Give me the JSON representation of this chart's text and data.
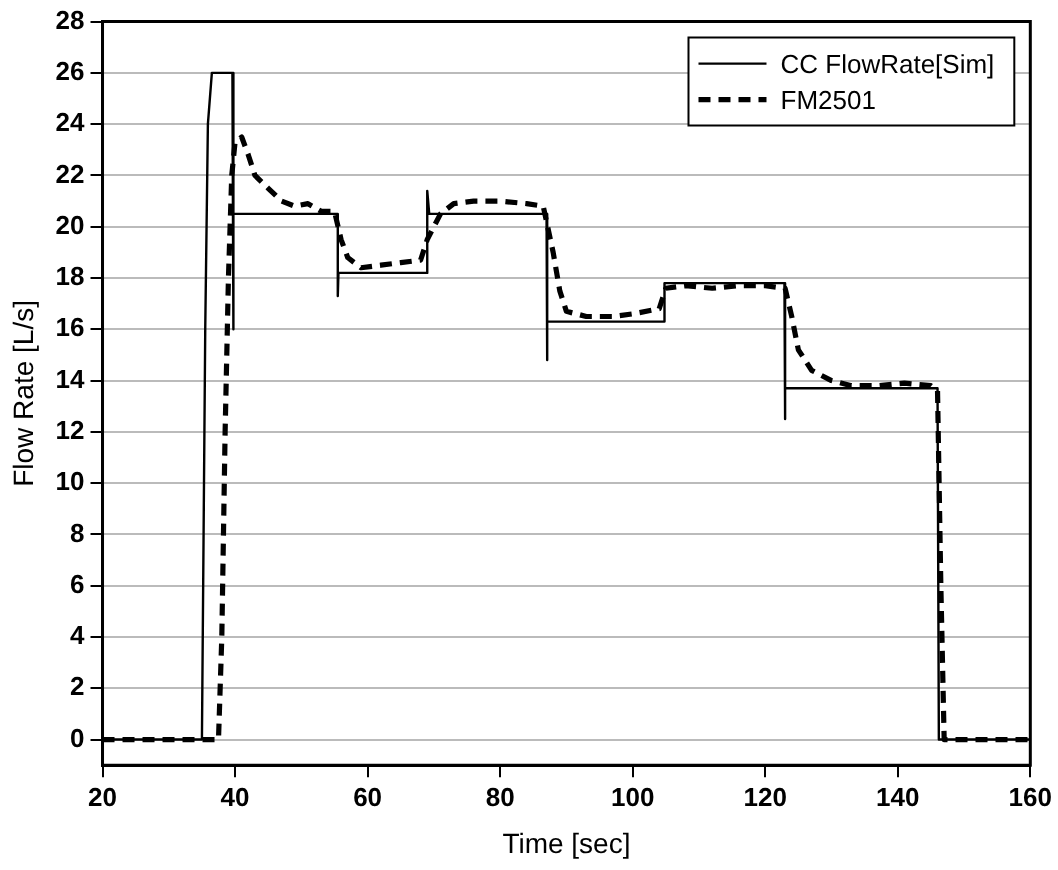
{
  "chart_data": {
    "type": "line",
    "xlabel": "Time [sec]",
    "ylabel": "Flow Rate [L/s]",
    "xlim": [
      20,
      160
    ],
    "xticks": [
      20,
      40,
      60,
      80,
      100,
      120,
      140,
      160
    ],
    "ylim": [
      -1,
      28
    ],
    "yticks": [
      0,
      2,
      4,
      6,
      8,
      10,
      12,
      14,
      16,
      18,
      20,
      22,
      24,
      26,
      28
    ],
    "grid": "y",
    "legend": "top right",
    "marker": "none",
    "series": [
      {
        "name": "CC FlowRate[Sim]",
        "color": "#000000",
        "line_style": "solid",
        "x": [
          20,
          35,
          35.5,
          35.9,
          36.5,
          39.6,
          39.7,
          39.8,
          55.5,
          55.5,
          55.6,
          69,
          69,
          69.3,
          87,
          87,
          87.2,
          104.8,
          104.8,
          122.9,
          122.9,
          123.1,
          146,
          146.2,
          160
        ],
        "values": [
          0,
          0,
          16,
          24,
          26,
          26,
          16,
          20.5,
          20.5,
          17.3,
          18.2,
          18.2,
          21.4,
          20.5,
          20.5,
          14.8,
          16.3,
          16.3,
          17.8,
          17.8,
          12.5,
          13.7,
          13.7,
          0,
          0
        ]
      },
      {
        "name": "FM2501",
        "color": "#000000",
        "line_style": "dashed",
        "x": [
          20,
          37.5,
          38,
          38.5,
          39,
          39.5,
          40,
          41,
          42,
          43,
          45,
          47,
          49,
          51,
          53,
          55,
          56,
          57,
          59,
          62,
          65,
          68,
          69,
          71,
          73,
          76,
          80,
          84,
          86.5,
          88,
          89,
          90,
          93,
          97,
          100,
          104,
          105,
          108,
          112,
          116,
          120,
          123,
          124,
          125,
          127,
          130,
          133,
          137,
          141,
          145,
          146,
          146.5,
          147,
          160
        ],
        "values": [
          0,
          0,
          4,
          12,
          18,
          22,
          23.3,
          23.5,
          22.8,
          22,
          21.5,
          21,
          20.8,
          20.9,
          20.6,
          20.6,
          19.5,
          18.8,
          18.4,
          18.5,
          18.6,
          18.7,
          19.5,
          20.5,
          20.9,
          21,
          21,
          20.9,
          20.8,
          19,
          17.5,
          16.7,
          16.5,
          16.5,
          16.6,
          16.8,
          17.6,
          17.7,
          17.6,
          17.7,
          17.7,
          17.6,
          16.5,
          15.2,
          14.4,
          14,
          13.8,
          13.8,
          13.9,
          13.8,
          13.6,
          6,
          0,
          0
        ]
      }
    ]
  }
}
